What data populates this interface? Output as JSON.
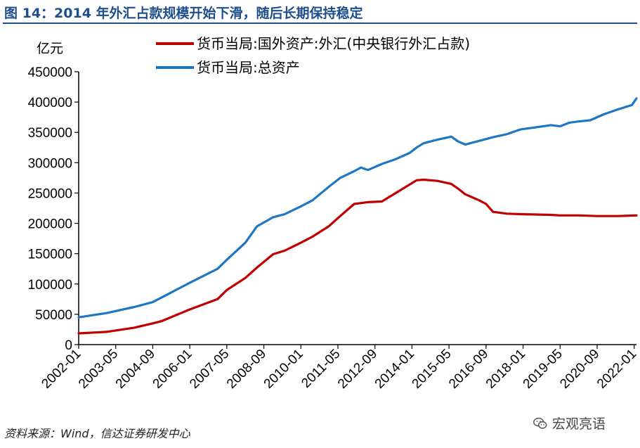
{
  "header": {
    "title": "图 14：2014 年外汇占款规模开始下滑，随后长期保持稳定"
  },
  "footer": {
    "source": "资料来源：Wind，信达证券研发中心",
    "watermark": "宏观亮语"
  },
  "icons": {
    "watermark": "wechat-icon"
  },
  "colors": {
    "series_forex": "#c00000",
    "series_total": "#1f77c4"
  },
  "chart_data": {
    "type": "line",
    "ylabel": "亿元",
    "xlabel": "",
    "ylim": [
      0,
      450000
    ],
    "yticks": [
      "0",
      "50000",
      "100000",
      "150000",
      "200000",
      "250000",
      "300000",
      "350000",
      "400000",
      "450000"
    ],
    "xticks": [
      "2002-01",
      "2003-05",
      "2004-09",
      "2006-01",
      "2007-05",
      "2008-09",
      "2010-01",
      "2011-05",
      "2012-09",
      "2014-01",
      "2015-05",
      "2016-09",
      "2018-01",
      "2019-05",
      "2020-09",
      "2022-01"
    ],
    "x_range": [
      "2002-01",
      "2022-02"
    ],
    "legend_position": "top-center",
    "series": [
      {
        "name": "货币当局:国外资产:外汇(中央银行外汇占款)",
        "x": [
          "2002-01",
          "2003-01",
          "2004-01",
          "2004-09",
          "2005-01",
          "2006-01",
          "2007-01",
          "2007-05",
          "2008-01",
          "2008-06",
          "2009-01",
          "2009-06",
          "2010-01",
          "2010-06",
          "2011-01",
          "2011-06",
          "2011-12",
          "2012-06",
          "2012-12",
          "2013-06",
          "2013-12",
          "2014-03",
          "2014-06",
          "2014-12",
          "2015-06",
          "2015-09",
          "2015-12",
          "2016-06",
          "2016-09",
          "2016-12",
          "2017-06",
          "2018-01",
          "2019-01",
          "2019-05",
          "2020-01",
          "2020-09",
          "2021-06",
          "2022-02"
        ],
        "values": [
          18500,
          21000,
          28000,
          35000,
          39000,
          58000,
          75000,
          90000,
          110000,
          127000,
          149000,
          155000,
          168000,
          178000,
          195000,
          212000,
          232000,
          235000,
          236000,
          250000,
          264000,
          271000,
          272000,
          270000,
          265000,
          257000,
          248000,
          238000,
          232000,
          219000,
          216000,
          215000,
          214000,
          213000,
          213000,
          212000,
          212000,
          213000
        ]
      },
      {
        "name": "货币当局:总资产",
        "x": [
          "2002-01",
          "2003-01",
          "2004-01",
          "2004-09",
          "2005-01",
          "2006-01",
          "2007-01",
          "2007-05",
          "2008-01",
          "2008-06",
          "2009-01",
          "2009-06",
          "2010-01",
          "2010-06",
          "2011-01",
          "2011-06",
          "2011-12",
          "2012-03",
          "2012-06",
          "2012-12",
          "2013-06",
          "2013-12",
          "2014-03",
          "2014-06",
          "2014-12",
          "2015-06",
          "2015-09",
          "2015-12",
          "2016-03",
          "2016-06",
          "2016-12",
          "2017-06",
          "2017-12",
          "2018-06",
          "2019-01",
          "2019-05",
          "2019-09",
          "2020-01",
          "2020-06",
          "2020-12",
          "2021-06",
          "2021-12",
          "2022-02"
        ],
        "values": [
          45000,
          52000,
          62000,
          70000,
          78000,
          102000,
          125000,
          140000,
          168000,
          195000,
          210000,
          215000,
          228000,
          238000,
          260000,
          275000,
          286000,
          292000,
          288000,
          298000,
          306000,
          316000,
          325000,
          332000,
          338000,
          343000,
          335000,
          330000,
          333000,
          336000,
          342000,
          347000,
          355000,
          358000,
          362000,
          360000,
          366000,
          368000,
          370000,
          380000,
          388000,
          395000,
          406000
        ]
      }
    ]
  }
}
